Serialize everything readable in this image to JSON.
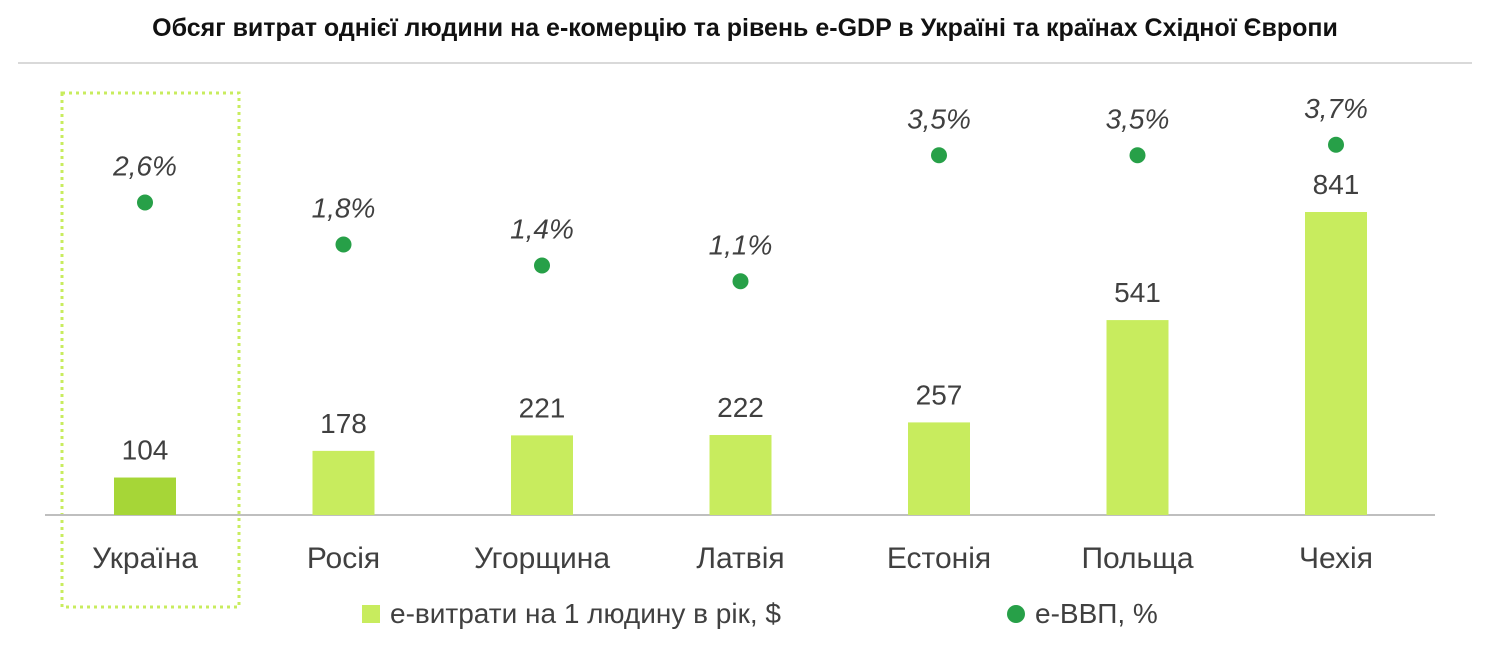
{
  "title": "Обсяг витрат однієї людини на е-комерцію та рівень e-GDP в Україні та країнах Східної Європи",
  "colors": {
    "bar": "#c8ec5e",
    "bar_highlight": "#a6d637",
    "dot": "#27a048",
    "highlight_border": "#c8ec5e"
  },
  "legend": {
    "bars_label": "е-витрати на 1 людину в рік, $",
    "dots_label": "e-ВВП, %"
  },
  "chart_data": {
    "type": "bar",
    "categories": [
      "Україна",
      "Росія",
      "Угорщина",
      "Латвія",
      "Естонія",
      "Польща",
      "Чехія"
    ],
    "series": [
      {
        "name": "е-витрати на 1 людину в рік, $",
        "type": "bar",
        "values": [
          104,
          178,
          221,
          222,
          257,
          541,
          841
        ],
        "labels": [
          "104",
          "178",
          "221",
          "222",
          "257",
          "541",
          "841"
        ]
      },
      {
        "name": "e-ВВП, %",
        "type": "scatter",
        "values": [
          2.6,
          1.8,
          1.4,
          1.1,
          3.5,
          3.5,
          3.7
        ],
        "labels": [
          "2,6%",
          "1,8%",
          "1,4%",
          "1,1%",
          "3,5%",
          "3,5%",
          "3,7%"
        ]
      }
    ],
    "highlighted_category": "Україна",
    "legend_position": "bottom",
    "grid": false
  }
}
